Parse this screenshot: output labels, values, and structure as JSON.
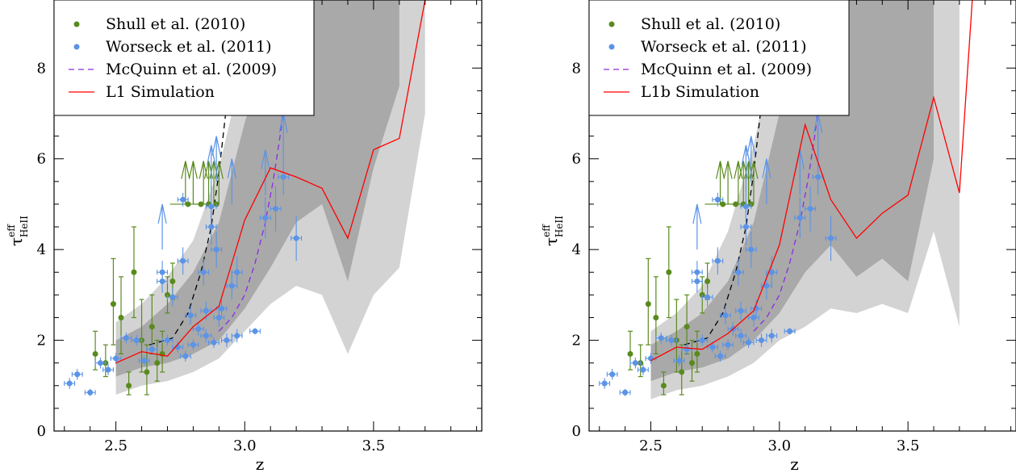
{
  "chart_data": [
    {
      "type": "scatter",
      "panel": "left",
      "xlabel": "z",
      "ylabel": "τ_HeII^eff",
      "xlim": [
        2.26,
        3.92
      ],
      "ylim": [
        0,
        9.5
      ],
      "xticks": [
        2.5,
        3.0,
        3.5
      ],
      "yticks": [
        0,
        2,
        4,
        6,
        8
      ],
      "tick_labels_x": [
        "2.5",
        "3.0",
        "3.5"
      ],
      "tick_labels_y": [
        "0",
        "2",
        "4",
        "6",
        "8"
      ],
      "legend_position": "top-left",
      "legend": [
        "Shull et al. (2010)",
        "Worseck et al. (2011)",
        "McQuinn et al. (2009)",
        "L1 Simulation"
      ],
      "colors": {
        "shull": "#5a8a1e",
        "worseck": "#5b93e6",
        "mcquinn": "#8a2be2",
        "sim": "#ff0000",
        "band_outer": "#d3d3d3",
        "band_inner": "#a9a9a9"
      },
      "band_outer": {
        "x": [
          2.5,
          2.6,
          2.7,
          2.8,
          2.9,
          3.0,
          3.1,
          3.2,
          3.3,
          3.4,
          3.5,
          3.6,
          3.7
        ],
        "lower": [
          0.8,
          1.0,
          1.1,
          1.3,
          1.6,
          2.2,
          2.8,
          3.2,
          3.0,
          1.7,
          3.0,
          3.6,
          7.0
        ],
        "upper": [
          2.4,
          2.8,
          3.4,
          4.2,
          5.8,
          8.2,
          9.5,
          9.5,
          9.5,
          9.5,
          9.5,
          9.5,
          9.5
        ]
      },
      "band_inner": {
        "x": [
          2.5,
          2.6,
          2.7,
          2.8,
          2.9,
          3.0,
          3.1,
          3.2,
          3.3,
          3.4,
          3.5,
          3.6
        ],
        "lower": [
          1.2,
          1.4,
          1.5,
          1.7,
          2.0,
          2.7,
          3.6,
          4.6,
          5.0,
          3.3,
          5.8,
          7.6
        ],
        "upper": [
          2.0,
          2.3,
          2.8,
          3.5,
          4.6,
          6.8,
          8.6,
          9.5,
          9.5,
          9.5,
          9.5,
          9.5
        ]
      },
      "simulation": {
        "name": "L1 Simulation",
        "x": [
          2.5,
          2.6,
          2.7,
          2.8,
          2.9,
          3.0,
          3.1,
          3.2,
          3.3,
          3.4,
          3.5,
          3.6,
          3.7
        ],
        "y": [
          1.5,
          1.75,
          1.65,
          2.3,
          2.75,
          4.65,
          5.8,
          5.6,
          5.35,
          4.25,
          6.2,
          6.45,
          9.5
        ]
      },
      "mcquinn_left": {
        "x": [
          2.63,
          2.72,
          2.78,
          2.83,
          2.87,
          2.9,
          2.93,
          2.96
        ],
        "y": [
          1.9,
          2.05,
          2.6,
          3.5,
          4.5,
          5.7,
          7.2,
          9.5
        ]
      },
      "mcquinn_right": {
        "x": [
          2.9,
          2.95,
          3.0,
          3.04,
          3.08,
          3.11,
          3.14,
          3.16,
          3.18
        ],
        "y": [
          2.2,
          2.5,
          3.0,
          3.7,
          4.6,
          5.5,
          6.6,
          7.7,
          9.0
        ]
      },
      "shull_points": [
        {
          "x": 2.42,
          "y": 1.7,
          "yerr": [
            0.35,
            0.5
          ]
        },
        {
          "x": 2.46,
          "y": 1.5,
          "yerr": [
            0.3,
            0.4
          ]
        },
        {
          "x": 2.49,
          "y": 2.8,
          "yerr": [
            0.9,
            1.0
          ]
        },
        {
          "x": 2.52,
          "y": 2.5,
          "yerr": [
            0.8,
            0.9
          ]
        },
        {
          "x": 2.55,
          "y": 1.0,
          "yerr": [
            0.2,
            0.3
          ]
        },
        {
          "x": 2.57,
          "y": 3.5,
          "yerr": [
            1.0,
            1.0
          ]
        },
        {
          "x": 2.6,
          "y": 2.0,
          "yerr": [
            0.7,
            0.9
          ]
        },
        {
          "x": 2.62,
          "y": 1.3,
          "yerr": [
            0.5,
            0.6
          ]
        },
        {
          "x": 2.64,
          "y": 2.3,
          "yerr": [
            0.6,
            0.7
          ]
        },
        {
          "x": 2.66,
          "y": 1.5,
          "yerr": [
            0.4,
            0.5
          ]
        },
        {
          "x": 2.68,
          "y": 1.7,
          "yerr": [
            0.4,
            0.5
          ]
        },
        {
          "x": 2.7,
          "y": 3.0,
          "yerr": [
            0.4,
            0.4
          ]
        },
        {
          "x": 2.72,
          "y": 3.3,
          "yerr": [
            0.4,
            0.4
          ]
        },
        {
          "x": 2.78,
          "y": 5.0,
          "yerr": [
            0,
            0
          ],
          "xerr": 0.07
        },
        {
          "x": 2.83,
          "y": 5.0,
          "yerr": [
            0,
            0
          ],
          "xerr": 0.03
        },
        {
          "x": 2.86,
          "y": 5.0,
          "yerr": [
            0,
            0
          ]
        },
        {
          "x": 2.89,
          "y": 5.0,
          "yerr": [
            0,
            0
          ]
        }
      ],
      "shull_lower_limits": [
        {
          "x": 2.77,
          "y": 5.0
        },
        {
          "x": 2.8,
          "y": 5.0
        },
        {
          "x": 2.84,
          "y": 5.0
        },
        {
          "x": 2.86,
          "y": 5.0
        },
        {
          "x": 2.88,
          "y": 5.0
        },
        {
          "x": 2.9,
          "y": 5.0
        }
      ],
      "worseck_points": [
        {
          "x": 2.32,
          "y": 1.05,
          "xerr": 0.02,
          "yerr": 0.12
        },
        {
          "x": 2.35,
          "y": 1.25,
          "xerr": 0.02,
          "yerr": 0.12
        },
        {
          "x": 2.4,
          "y": 0.85,
          "xerr": 0.02,
          "yerr": 0.08
        },
        {
          "x": 2.44,
          "y": 1.5,
          "xerr": 0.02,
          "yerr": 0.12
        },
        {
          "x": 2.47,
          "y": 1.35,
          "xerr": 0.02,
          "yerr": 0.12
        },
        {
          "x": 2.5,
          "y": 1.6,
          "xerr": 0.02,
          "yerr": 0.12
        },
        {
          "x": 2.54,
          "y": 2.05,
          "xerr": 0.02,
          "yerr": 0.12
        },
        {
          "x": 2.58,
          "y": 2.0,
          "xerr": 0.02,
          "yerr": 0.12
        },
        {
          "x": 2.61,
          "y": 1.55,
          "xerr": 0.02,
          "yerr": 0.12
        },
        {
          "x": 2.64,
          "y": 1.8,
          "xerr": 0.02,
          "yerr": 0.12
        },
        {
          "x": 2.68,
          "y": 3.3,
          "xerr": 0.02,
          "yerr": 0.25
        },
        {
          "x": 2.68,
          "y": 3.5,
          "xerr": 0.02,
          "yerr": 0.25
        },
        {
          "x": 2.7,
          "y": 2.0,
          "xerr": 0.02,
          "yerr": 0.12
        },
        {
          "x": 2.72,
          "y": 2.95,
          "xerr": 0.02,
          "yerr": 0.2
        },
        {
          "x": 2.74,
          "y": 1.85,
          "xerr": 0.02,
          "yerr": 0.12
        },
        {
          "x": 2.76,
          "y": 3.75,
          "xerr": 0.02,
          "yerr": 0.3
        },
        {
          "x": 2.76,
          "y": 5.1,
          "xerr": 0.02,
          "yerr": 0.15
        },
        {
          "x": 2.77,
          "y": 1.65,
          "xerr": 0.02,
          "yerr": 0.12
        },
        {
          "x": 2.79,
          "y": 2.55,
          "xerr": 0.02,
          "yerr": 0.2
        },
        {
          "x": 2.8,
          "y": 1.9,
          "xerr": 0.02,
          "yerr": 0.12
        },
        {
          "x": 2.82,
          "y": 2.25,
          "xerr": 0.02,
          "yerr": 0.15
        },
        {
          "x": 2.84,
          "y": 3.5,
          "xerr": 0.02,
          "yerr": 0.3
        },
        {
          "x": 2.85,
          "y": 2.65,
          "xerr": 0.02,
          "yerr": 0.2
        },
        {
          "x": 2.85,
          "y": 2.1,
          "xerr": 0.02,
          "yerr": 0.15
        },
        {
          "x": 2.87,
          "y": 4.5,
          "xerr": 0.02,
          "yerr": 0.4
        },
        {
          "x": 2.87,
          "y": 4.95,
          "xerr": 0.02,
          "yerr": 0.45
        },
        {
          "x": 2.88,
          "y": 1.95,
          "xerr": 0.02,
          "yerr": 0.12
        },
        {
          "x": 2.89,
          "y": 4.0,
          "xerr": 0.02,
          "yerr": 0.4
        },
        {
          "x": 2.9,
          "y": 2.5,
          "xerr": 0.02,
          "yerr": 0.2
        },
        {
          "x": 2.91,
          "y": 2.7,
          "xerr": 0.02,
          "yerr": 0.2
        },
        {
          "x": 2.93,
          "y": 2.0,
          "xerr": 0.02,
          "yerr": 0.15
        },
        {
          "x": 2.95,
          "y": 3.2,
          "xerr": 0.02,
          "yerr": 0.3
        },
        {
          "x": 2.97,
          "y": 2.1,
          "xerr": 0.02,
          "yerr": 0.15
        },
        {
          "x": 2.97,
          "y": 3.5,
          "xerr": 0.02,
          "yerr": 0.35
        },
        {
          "x": 3.04,
          "y": 2.2,
          "xerr": 0.02,
          "yerr": 0.07
        },
        {
          "x": 3.08,
          "y": 4.7,
          "xerr": 0.02,
          "yerr": 0.45
        },
        {
          "x": 3.12,
          "y": 4.9,
          "xerr": 0.02,
          "yerr": 0.5
        },
        {
          "x": 3.15,
          "y": 5.6,
          "xerr": 0.02,
          "yerr": 0.4
        },
        {
          "x": 3.2,
          "y": 4.25,
          "xerr": 0.02,
          "yerr": 0.5
        }
      ],
      "worseck_lower_limits": [
        {
          "x": 2.68,
          "y": 4.0
        },
        {
          "x": 2.87,
          "y": 5.3
        },
        {
          "x": 2.89,
          "y": 5.5
        },
        {
          "x": 2.95,
          "y": 5.0
        },
        {
          "x": 3.08,
          "y": 5.2
        },
        {
          "x": 3.15,
          "y": 6.0
        }
      ]
    },
    {
      "type": "scatter",
      "panel": "right",
      "xlabel": "z",
      "ylabel": "τ_HeII^eff",
      "xlim": [
        2.26,
        3.92
      ],
      "ylim": [
        0,
        9.5
      ],
      "xticks": [
        2.5,
        3.0,
        3.5
      ],
      "yticks": [
        0,
        2,
        4,
        6,
        8
      ],
      "tick_labels_x": [
        "2.5",
        "3.0",
        "3.5"
      ],
      "tick_labels_y": [
        "0",
        "2",
        "4",
        "6",
        "8"
      ],
      "legend_position": "top-left",
      "legend": [
        "Shull et al. (2010)",
        "Worseck et al. (2011)",
        "McQuinn et al. (2009)",
        "L1b Simulation"
      ],
      "band_outer": {
        "x": [
          2.5,
          2.6,
          2.7,
          2.8,
          2.9,
          3.0,
          3.1,
          3.2,
          3.3,
          3.4,
          3.5,
          3.6,
          3.7
        ],
        "lower": [
          0.7,
          0.9,
          1.0,
          1.2,
          1.5,
          2.0,
          2.3,
          2.7,
          2.6,
          2.8,
          2.6,
          4.4,
          2.3
        ],
        "upper": [
          2.2,
          2.6,
          3.2,
          4.4,
          6.3,
          9.0,
          9.5,
          9.5,
          9.5,
          9.5,
          9.5,
          9.5,
          9.5
        ]
      },
      "band_inner": {
        "x": [
          2.5,
          2.6,
          2.7,
          2.8,
          2.9,
          3.0,
          3.1,
          3.2,
          3.3,
          3.4,
          3.5,
          3.6
        ],
        "lower": [
          1.1,
          1.3,
          1.4,
          1.6,
          2.0,
          2.6,
          3.5,
          4.1,
          3.4,
          3.8,
          3.3,
          6.0
        ],
        "upper": [
          1.9,
          2.2,
          2.6,
          3.3,
          4.6,
          7.0,
          9.5,
          9.5,
          9.5,
          9.5,
          9.5,
          9.5
        ]
      },
      "simulation": {
        "name": "L1b Simulation",
        "x": [
          2.5,
          2.6,
          2.7,
          2.8,
          2.9,
          3.0,
          3.1,
          3.2,
          3.3,
          3.4,
          3.5,
          3.6,
          3.7,
          3.75
        ],
        "y": [
          1.55,
          1.85,
          1.8,
          2.15,
          2.65,
          4.1,
          6.75,
          5.1,
          4.25,
          4.8,
          5.2,
          7.35,
          5.25,
          9.5
        ]
      }
    }
  ]
}
